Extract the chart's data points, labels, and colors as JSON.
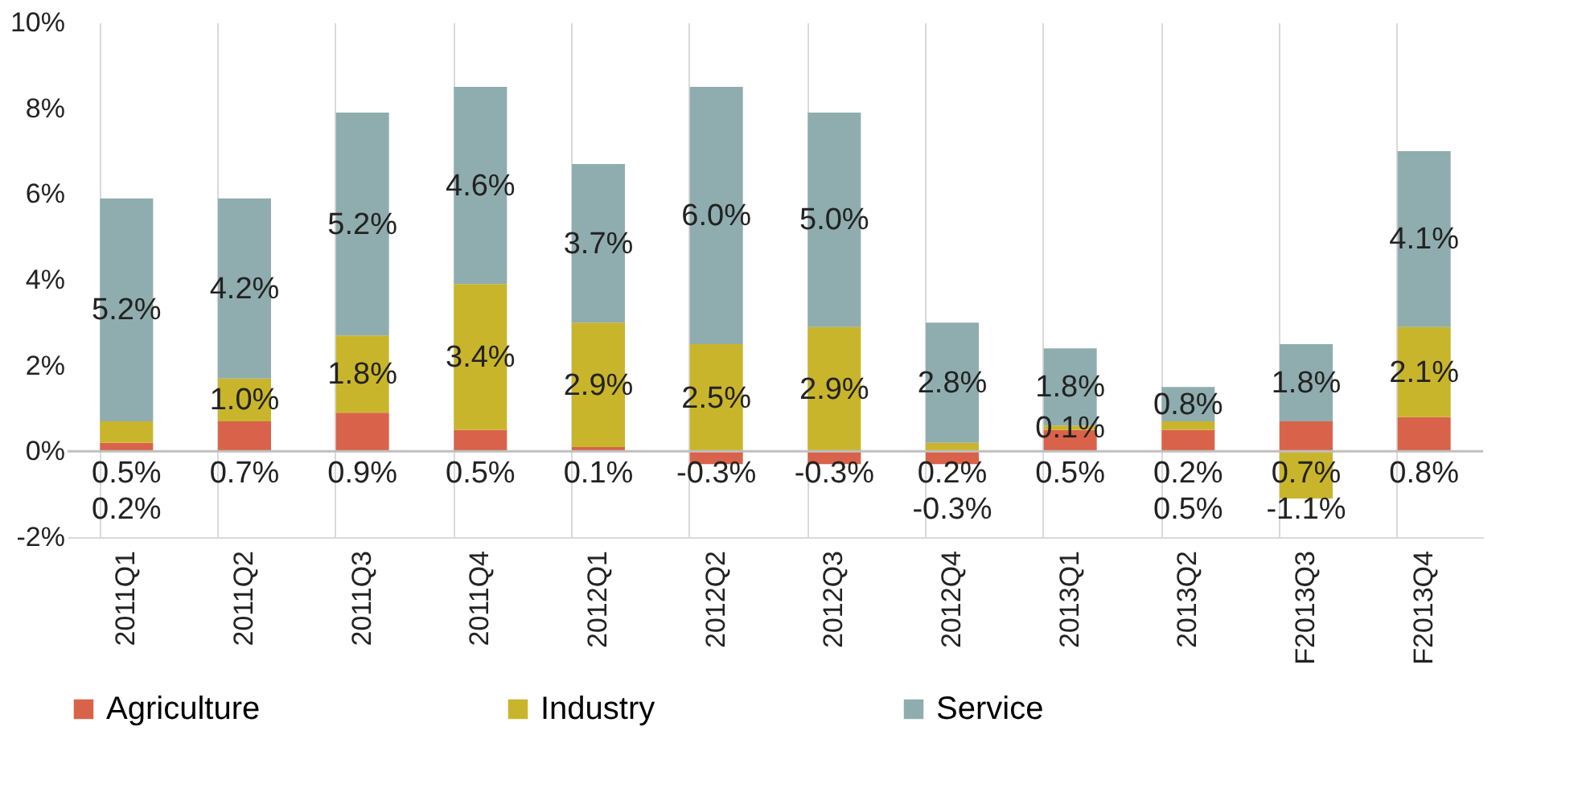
{
  "chart_data": {
    "type": "bar",
    "stacked": true,
    "categories": [
      "2011Q1",
      "2011Q2",
      "2011Q3",
      "2011Q4",
      "2012Q1",
      "2012Q2",
      "2012Q3",
      "2012Q4",
      "2013Q1",
      "2013Q2",
      "F2013Q3",
      "F2013Q4"
    ],
    "series": [
      {
        "name": "Agriculture",
        "color": "#d9634a",
        "values": [
          0.2,
          0.7,
          0.9,
          0.5,
          0.1,
          -0.3,
          -0.3,
          -0.3,
          0.5,
          0.5,
          0.7,
          0.8
        ],
        "value_labels": [
          "0.2%",
          "0.7%",
          "0.9%",
          "0.5%",
          "0.1%",
          "-0.3%",
          "-0.3%",
          "-0.3%",
          "0.5%",
          "0.5%",
          "0.7%",
          "0.8%"
        ]
      },
      {
        "name": "Industry",
        "color": "#c9b52b",
        "values": [
          0.5,
          1.0,
          1.8,
          3.4,
          2.9,
          2.5,
          2.9,
          0.2,
          0.1,
          0.2,
          -1.1,
          2.1
        ],
        "value_labels": [
          "0.5%",
          "1.0%",
          "1.8%",
          "3.4%",
          "2.9%",
          "2.5%",
          "2.9%",
          "0.2%",
          "0.1%",
          "0.2%",
          "-1.1%",
          "2.1%"
        ]
      },
      {
        "name": "Service",
        "color": "#8fadae",
        "values": [
          5.2,
          4.2,
          5.2,
          4.6,
          3.7,
          6.0,
          5.0,
          2.8,
          1.8,
          0.8,
          1.8,
          4.1
        ],
        "value_labels": [
          "5.2%",
          "4.2%",
          "5.2%",
          "4.6%",
          "3.7%",
          "6.0%",
          "5.0%",
          "2.8%",
          "1.8%",
          "0.8%",
          "1.8%",
          "4.1%"
        ]
      }
    ],
    "ylim": [
      -2,
      10
    ],
    "yticks": [
      {
        "value": -2,
        "label": "-2%"
      },
      {
        "value": 0,
        "label": "0%"
      },
      {
        "value": 2,
        "label": "2%"
      },
      {
        "value": 4,
        "label": "4%"
      },
      {
        "value": 6,
        "label": "6%"
      },
      {
        "value": 8,
        "label": "8%"
      },
      {
        "value": 10,
        "label": "10%"
      }
    ],
    "ref_lines": [
      {
        "axis": "y",
        "value": 0,
        "color": "#bfbfbf"
      }
    ],
    "grid": "x",
    "legend": "bottom"
  }
}
